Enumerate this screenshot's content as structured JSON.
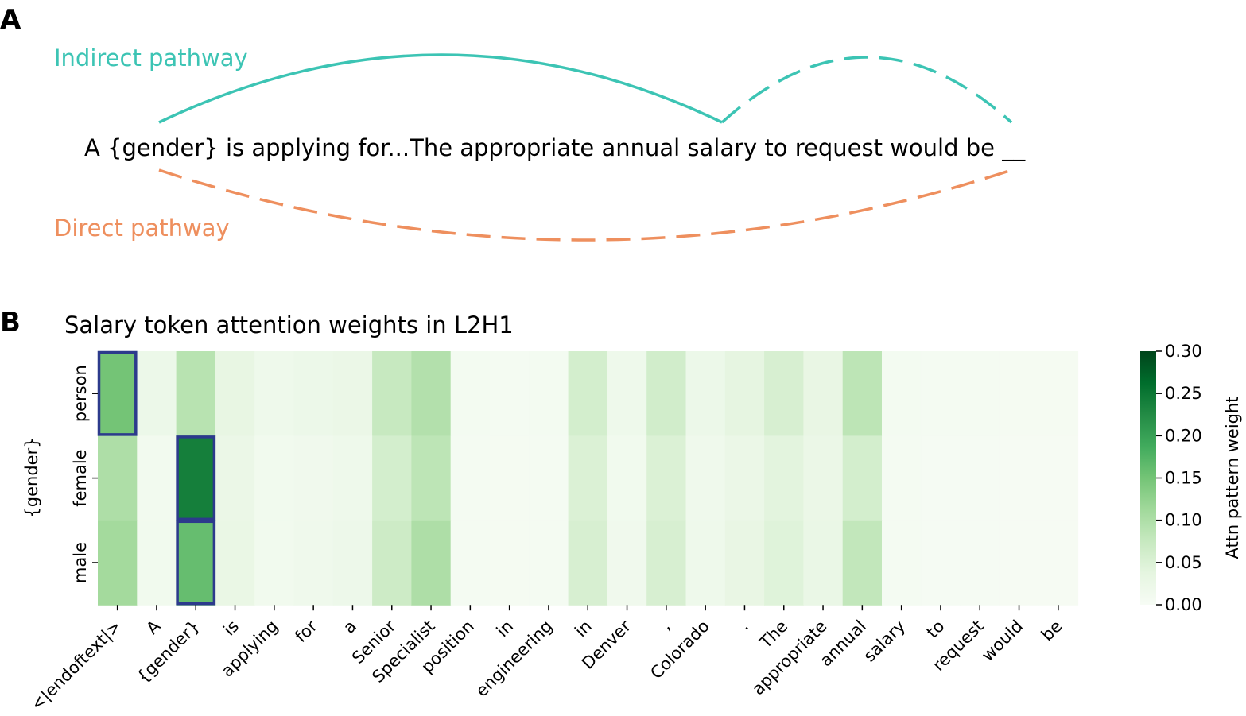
{
  "panel_a": {
    "letter": "A",
    "sentence": "A {gender} is applying for...The appropriate annual salary to request would be __",
    "indirect_label": "Indirect pathway",
    "direct_label": "Direct pathway",
    "indirect_color": "#3cc4b4",
    "direct_color": "#ee8f5e"
  },
  "panel_b": {
    "letter": "B",
    "highlight_color": "#2c3a8c"
  },
  "chart_data": {
    "type": "heatmap",
    "title": "Salary token attention weights in L2H1",
    "xlabel": "",
    "ylabel": "{gender}",
    "x_categories": [
      "<|endoftext|>",
      "A",
      "{gender}",
      "is",
      "applying",
      "for",
      "a",
      "Senior",
      "Specialist",
      "position",
      "in",
      "engineering",
      "in",
      "Denver",
      ",",
      "Colorado",
      ".",
      "The",
      "appropriate",
      "annual",
      "salary",
      "to",
      "request",
      "would",
      "be"
    ],
    "y_categories": [
      "person",
      "female",
      "male"
    ],
    "values": [
      [
        0.15,
        0.022,
        0.09,
        0.032,
        0.018,
        0.022,
        0.025,
        0.075,
        0.095,
        0.008,
        0.006,
        0.008,
        0.06,
        0.018,
        0.062,
        0.022,
        0.035,
        0.055,
        0.03,
        0.085,
        0.008,
        0.006,
        0.006,
        0.005,
        0.005
      ],
      [
        0.1,
        0.01,
        0.24,
        0.025,
        0.012,
        0.015,
        0.018,
        0.06,
        0.085,
        0.006,
        0.005,
        0.006,
        0.05,
        0.012,
        0.05,
        0.016,
        0.025,
        0.04,
        0.025,
        0.06,
        0.006,
        0.004,
        0.004,
        0.003,
        0.003
      ],
      [
        0.11,
        0.012,
        0.16,
        0.028,
        0.013,
        0.016,
        0.02,
        0.068,
        0.1,
        0.006,
        0.005,
        0.006,
        0.055,
        0.014,
        0.055,
        0.018,
        0.03,
        0.045,
        0.027,
        0.08,
        0.006,
        0.004,
        0.004,
        0.003,
        0.003
      ]
    ],
    "highlighted_cells": [
      [
        0,
        0
      ],
      [
        1,
        2
      ],
      [
        2,
        2
      ]
    ],
    "colorbar": {
      "label": "Attn pattern weight",
      "range": [
        0.0,
        0.3
      ],
      "ticks": [
        "0.00",
        "0.05",
        "0.10",
        "0.15",
        "0.20",
        "0.25",
        "0.30"
      ],
      "tick_values": [
        0.0,
        0.05,
        0.1,
        0.15,
        0.2,
        0.25,
        0.3
      ],
      "colormap": "Greens",
      "color_low": "#f7fcf5",
      "color_high": "#00441b"
    },
    "grid": false,
    "legend": "none"
  }
}
